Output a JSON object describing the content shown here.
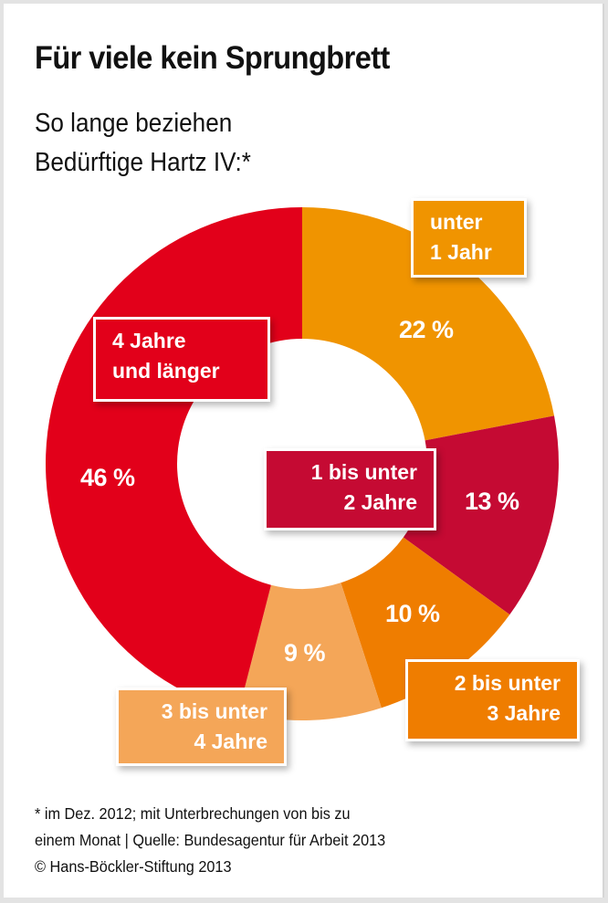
{
  "header": {
    "title": "Für viele kein Sprungbrett",
    "subtitle_line1": "So lange beziehen",
    "subtitle_line2": "Bedürftige Hartz IV:*"
  },
  "colors": {
    "under_1": "#f09400",
    "1_to_2": "#c50a33",
    "2_to_3": "#ef7d00",
    "3_to_4": "#f4a658",
    "4_plus": "#e2001a"
  },
  "segments": [
    {
      "label_line1": "unter",
      "label_line2": "1 Jahr",
      "value": 22,
      "pct_text": "22 %",
      "color": "#f09400"
    },
    {
      "label_line1": "1 bis unter",
      "label_line2": "2 Jahre",
      "value": 13,
      "pct_text": "13 %",
      "color": "#c50a33"
    },
    {
      "label_line1": "2 bis unter",
      "label_line2": "3 Jahre",
      "value": 10,
      "pct_text": "10 %",
      "color": "#ef7d00"
    },
    {
      "label_line1": "3 bis unter",
      "label_line2": "4 Jahre",
      "value": 9,
      "pct_text": "9 %",
      "color": "#f4a658"
    },
    {
      "label_line1": "4 Jahre",
      "label_line2": "und länger",
      "value": 46,
      "pct_text": "46 %",
      "color": "#e2001a"
    }
  ],
  "footnote": {
    "line1": "* im Dez. 2012; mit Unterbrechungen von bis zu",
    "line2": "einem Monat | Quelle: Bundesagentur für Arbeit 2013",
    "line3": "© Hans-Böckler-Stiftung 2013"
  },
  "chart_data": {
    "type": "pie",
    "variant": "donut",
    "title": "Für viele kein Sprungbrett",
    "subtitle": "So lange beziehen Bedürftige Hartz IV:*",
    "categories": [
      "unter 1 Jahr",
      "1 bis unter 2 Jahre",
      "2 bis unter 3 Jahre",
      "3 bis unter 4 Jahre",
      "4 Jahre und länger"
    ],
    "values": [
      22,
      13,
      10,
      9,
      46
    ],
    "unit": "%",
    "colors": [
      "#f09400",
      "#c50a33",
      "#ef7d00",
      "#f4a658",
      "#e2001a"
    ],
    "start_angle": "12 o'clock, clockwise",
    "legend": "none (direct labels in boxes)",
    "annotations": [
      "* im Dez. 2012; mit Unterbrechungen von bis zu einem Monat | Quelle: Bundesagentur für Arbeit 2013",
      "© Hans-Böckler-Stiftung 2013"
    ]
  }
}
